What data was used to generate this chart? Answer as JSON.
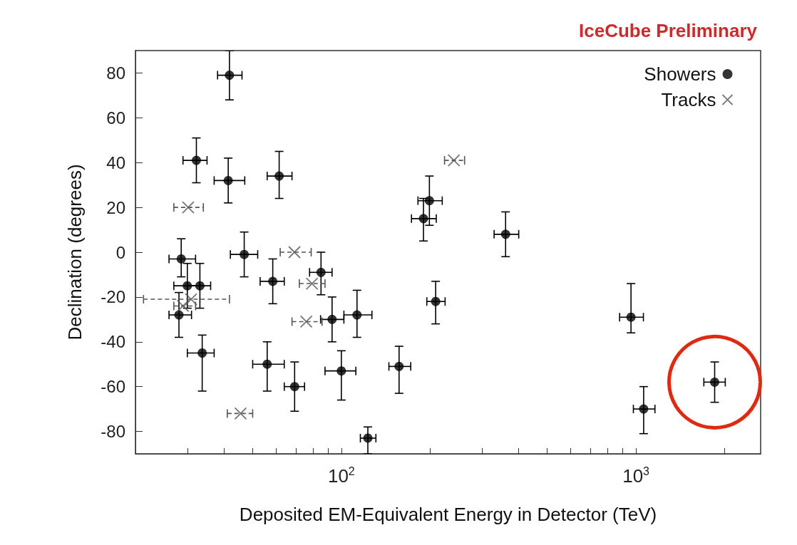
{
  "chart_data": {
    "type": "scatter",
    "xlabel": "Deposited EM-Equivalent Energy in Detector (TeV)",
    "ylabel": "Declination (degrees)",
    "annotations": [
      "IceCube Preliminary"
    ],
    "log": "x",
    "xlim": [
      20,
      2650
    ],
    "ylim": [
      -90,
      90
    ],
    "xticks": [
      {
        "value": 30,
        "label": null
      },
      {
        "value": 40,
        "label": null
      },
      {
        "value": 50,
        "label": null
      },
      {
        "value": 60,
        "label": null
      },
      {
        "value": 70,
        "label": null
      },
      {
        "value": 80,
        "label": null
      },
      {
        "value": 90,
        "label": null
      },
      {
        "value": 100,
        "label": "10$^{2}$"
      },
      {
        "value": 200,
        "label": null
      },
      {
        "value": 300,
        "label": null
      },
      {
        "value": 400,
        "label": null
      },
      {
        "value": 500,
        "label": null
      },
      {
        "value": 600,
        "label": null
      },
      {
        "value": 700,
        "label": null
      },
      {
        "value": 800,
        "label": null
      },
      {
        "value": 900,
        "label": null
      },
      {
        "value": 1000,
        "label": "10$^{3}$"
      },
      {
        "value": 2000,
        "label": null
      }
    ],
    "yticks": [
      -80,
      -60,
      -40,
      -20,
      0,
      20,
      40,
      60,
      80
    ],
    "grid": false,
    "legend": "top right",
    "series": [
      {
        "name": "Showers",
        "color": "#000000",
        "marker": "circle",
        "line_style": "solid",
        "x": [
          41.7,
          32.2,
          41.3,
          61.5,
          28.6,
          46.8,
          30,
          33.1,
          28.1,
          33.7,
          58.5,
          85.3,
          93,
          56,
          69.4,
          199,
          190,
          361,
          113,
          209,
          100,
          157,
          123,
          962,
          1062,
          1850
        ],
        "values": [
          79,
          41,
          32,
          34,
          -3,
          -1,
          -15,
          -15,
          -28,
          -45,
          -13,
          -9,
          -30,
          -50,
          -60,
          23,
          15,
          8,
          -28,
          -22,
          -53,
          -51,
          -83,
          -29,
          -70,
          -58
        ],
        "errors": [
          [
            68,
            90
          ],
          [
            31,
            51
          ],
          [
            22,
            42
          ],
          [
            24,
            45
          ],
          [
            -11,
            6
          ],
          [
            -11,
            9
          ],
          [
            -25,
            -5
          ],
          [
            -25,
            -5
          ],
          [
            -38,
            -18
          ],
          [
            -62,
            -37
          ],
          [
            -23,
            -3
          ],
          [
            -19,
            0
          ],
          [
            -40,
            -20
          ],
          [
            -62,
            -40
          ],
          [
            -71,
            -49
          ],
          [
            12,
            34
          ],
          [
            5,
            24
          ],
          [
            -2,
            18
          ],
          [
            -38,
            -17
          ],
          [
            -32,
            -13
          ],
          [
            -66,
            -44
          ],
          [
            -63,
            -42
          ],
          [
            -90,
            -78
          ],
          [
            -36,
            -14
          ],
          [
            -81,
            -60
          ],
          [
            -67,
            -49
          ]
        ],
        "xerrors": [
          [
            38,
            46
          ],
          [
            29,
            35
          ],
          [
            37,
            47
          ],
          [
            56,
            68
          ],
          [
            26,
            32
          ],
          [
            42,
            52
          ],
          [
            27,
            33
          ],
          [
            30,
            36
          ],
          [
            26,
            31
          ],
          [
            30,
            37
          ],
          [
            53,
            64
          ],
          [
            78,
            93
          ],
          [
            85,
            102
          ],
          [
            50,
            64
          ],
          [
            64,
            75
          ],
          [
            182,
            220
          ],
          [
            173,
            210
          ],
          [
            330,
            400
          ],
          [
            102,
            127
          ],
          [
            195,
            225
          ],
          [
            88,
            112
          ],
          [
            145,
            172
          ],
          [
            116,
            131
          ],
          [
            880,
            1060
          ],
          [
            980,
            1160
          ],
          [
            1700,
            2010
          ]
        ]
      },
      {
        "name": "Tracks",
        "color": "#555555",
        "marker": "cross",
        "line_style": "dashed",
        "x": [
          30.2,
          69.3,
          79.5,
          76,
          45.5,
          241,
          30.9,
          29
        ],
        "values": [
          20,
          0,
          -14,
          -31,
          -72,
          41,
          -21,
          -24
        ],
        "xerrors": [
          [
            27,
            34
          ],
          [
            62,
            79
          ],
          [
            72,
            88
          ],
          [
            68,
            86
          ],
          [
            41,
            50
          ],
          [
            224,
            262
          ],
          [
            21.3,
            41.7
          ],
          [
            27,
            32
          ]
        ]
      }
    ]
  }
}
